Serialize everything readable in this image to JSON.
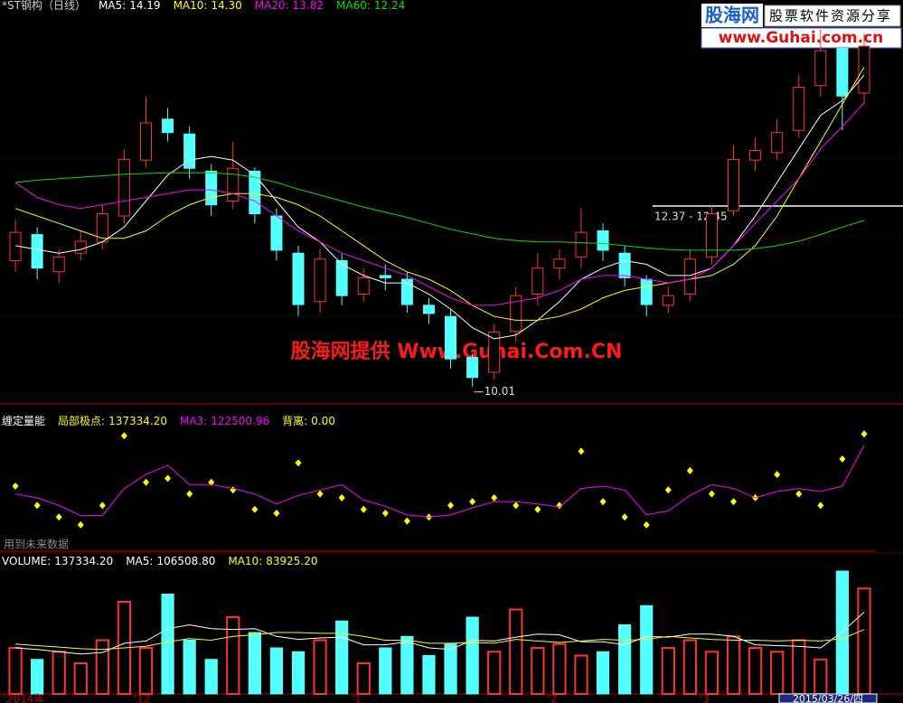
{
  "chart_data": [
    {
      "type": "candlestick",
      "title": "*ST钢构（日线）",
      "ylim": [
        9.8,
        15.2
      ],
      "up_color": "#ff3232",
      "down_color": "#54ffff",
      "open": [
        11.7,
        12.05,
        11.55,
        11.8,
        11.95,
        12.3,
        13.05,
        13.6,
        13.4,
        12.9,
        12.5,
        12.9,
        12.3,
        11.8,
        11.15,
        11.7,
        11.25,
        11.5,
        11.45,
        11.1,
        10.95,
        10.4,
        10.2,
        10.75,
        11.25,
        11.6,
        11.75,
        12.1,
        11.8,
        11.45,
        11.1,
        11.25,
        11.75,
        12.37,
        13.05,
        13.15,
        13.45,
        14.05,
        14.55,
        13.95
      ],
      "high": [
        12.25,
        12.15,
        11.85,
        12.1,
        12.45,
        13.2,
        13.9,
        13.75,
        13.5,
        13.0,
        13.3,
        12.95,
        12.4,
        11.9,
        11.85,
        11.8,
        11.6,
        11.65,
        11.55,
        11.2,
        11.05,
        10.45,
        10.85,
        11.35,
        11.8,
        11.85,
        12.4,
        12.2,
        11.9,
        11.5,
        11.35,
        11.85,
        12.45,
        13.25,
        13.35,
        13.6,
        14.2,
        14.8,
        14.6,
        14.75
      ],
      "low": [
        11.55,
        11.45,
        11.4,
        11.7,
        11.85,
        12.2,
        12.95,
        13.3,
        12.8,
        12.3,
        12.4,
        12.2,
        11.7,
        10.95,
        11.0,
        11.1,
        11.15,
        11.3,
        11.0,
        10.85,
        10.25,
        10.01,
        10.1,
        10.6,
        11.1,
        11.45,
        11.6,
        11.7,
        11.35,
        10.95,
        11.0,
        11.15,
        11.65,
        12.3,
        12.9,
        13.05,
        13.35,
        13.9,
        13.45,
        13.8
      ],
      "close": [
        12.08,
        11.6,
        11.75,
        11.96,
        12.33,
        13.06,
        13.55,
        13.42,
        12.94,
        12.45,
        12.94,
        12.33,
        11.84,
        11.11,
        11.72,
        11.23,
        11.47,
        11.47,
        11.11,
        10.99,
        10.38,
        10.13,
        10.74,
        11.23,
        11.6,
        11.72,
        12.08,
        11.84,
        11.47,
        11.11,
        11.23,
        11.72,
        12.33,
        13.06,
        13.18,
        13.42,
        14.03,
        14.52,
        13.91,
        14.58
      ],
      "series": [
        {
          "name": "MA5:",
          "color": "#ffffff",
          "current": {
            "value": 14.19,
            "label": "14.19"
          },
          "values": [
            11.9,
            11.85,
            11.8,
            11.85,
            11.95,
            12.15,
            12.5,
            12.85,
            13.05,
            13.1,
            13.05,
            12.85,
            12.5,
            12.15,
            11.95,
            11.65,
            11.5,
            11.4,
            11.4,
            11.25,
            11.05,
            10.8,
            10.65,
            10.7,
            10.9,
            11.15,
            11.45,
            11.6,
            11.7,
            11.65,
            11.5,
            11.5,
            11.6,
            11.9,
            12.3,
            12.75,
            13.2,
            13.65,
            13.85,
            14.19
          ]
        },
        {
          "name": "MA10:",
          "color": "#ffff00",
          "current": {
            "value": 14.3,
            "label": "14.30"
          },
          "values": [
            12.4,
            12.3,
            12.2,
            12.1,
            12.0,
            12.0,
            12.1,
            12.3,
            12.45,
            12.55,
            12.6,
            12.6,
            12.55,
            12.45,
            12.3,
            12.1,
            11.9,
            11.7,
            11.55,
            11.45,
            11.3,
            11.1,
            10.95,
            10.9,
            10.9,
            10.95,
            11.05,
            11.2,
            11.3,
            11.35,
            11.4,
            11.45,
            11.5,
            11.65,
            11.9,
            12.3,
            12.8,
            13.3,
            13.8,
            14.3
          ]
        },
        {
          "name": "MA20:",
          "color": "#ff00ff",
          "current": {
            "value": 13.82,
            "label": "13.82"
          },
          "values": [
            12.75,
            12.55,
            12.45,
            12.4,
            12.45,
            12.5,
            12.55,
            12.6,
            12.65,
            12.65,
            12.6,
            12.5,
            12.3,
            12.1,
            11.95,
            11.8,
            11.7,
            11.6,
            11.5,
            11.35,
            11.2,
            11.1,
            11.1,
            11.15,
            11.2,
            11.3,
            11.45,
            11.5,
            11.5,
            11.45,
            11.4,
            11.45,
            11.6,
            11.9,
            12.2,
            12.5,
            12.8,
            13.2,
            13.5,
            13.82
          ]
        },
        {
          "name": "MA60:",
          "color": "#00e000",
          "current": {
            "value": 12.24,
            "label": "12.24"
          },
          "values": [
            12.75,
            12.78,
            12.8,
            12.82,
            12.84,
            12.86,
            12.87,
            12.88,
            12.88,
            12.88,
            12.86,
            12.82,
            12.75,
            12.66,
            12.58,
            12.5,
            12.42,
            12.35,
            12.28,
            12.2,
            12.12,
            12.06,
            12.0,
            11.97,
            11.95,
            11.95,
            11.94,
            11.93,
            11.9,
            11.87,
            11.85,
            11.84,
            11.84,
            11.84,
            11.86,
            11.9,
            11.96,
            12.05,
            12.15,
            12.24
          ]
        }
      ],
      "annotation": "12.37 - 12.45"
    },
    {
      "type": "line",
      "title": "缠定量能",
      "ylim": [
        0,
        140000
      ],
      "series": [
        {
          "name": "局部极点:",
          "color": "#ffff00",
          "marker": "diamond",
          "current": {
            "value": 137334.2,
            "label": "137334.20"
          },
          "values": [
            70000,
            45000,
            30000,
            20000,
            45000,
            135000,
            75000,
            80000,
            60000,
            75000,
            65000,
            40000,
            35000,
            100000,
            60000,
            55000,
            40000,
            35000,
            25000,
            30000,
            45000,
            50000,
            55000,
            45000,
            40000,
            45000,
            115000,
            50000,
            30000,
            20000,
            65000,
            90000,
            60000,
            50000,
            55000,
            85000,
            60000,
            45000,
            105000,
            137334.2
          ]
        },
        {
          "name": "MA3:",
          "color": "#ff00ff",
          "current": {
            "value": 122500.96,
            "label": "122500.96"
          },
          "values": [
            60000,
            55000,
            45000,
            32000,
            32000,
            67000,
            85000,
            97000,
            72000,
            72000,
            67000,
            60000,
            47000,
            58000,
            65000,
            72000,
            52000,
            44000,
            33000,
            30000,
            33000,
            42000,
            50000,
            50000,
            47000,
            43000,
            67000,
            70000,
            65000,
            33000,
            38000,
            58000,
            72000,
            67000,
            55000,
            63000,
            67000,
            63000,
            70000,
            122500.96
          ]
        }
      ],
      "divergence": {
        "name": "背离:",
        "color": "#ffff00",
        "current": {
          "value": 0,
          "label": "0.00"
        }
      },
      "note": "用到未来数据"
    },
    {
      "type": "bar",
      "ylim": [
        0,
        180000
      ],
      "categories": [
        "2014年",
        null,
        null,
        null,
        null,
        null,
        "12",
        null,
        null,
        null,
        null,
        null,
        null,
        null,
        null,
        null,
        "1",
        null,
        null,
        null,
        null,
        null,
        null,
        null,
        null,
        "2",
        null,
        null,
        null,
        null,
        null,
        null,
        "3",
        null,
        null,
        null,
        null,
        null,
        null,
        null
      ],
      "cursor_date": "2015/03/26/四",
      "series": [
        {
          "name": "VOLUME:",
          "color": "#ffffff",
          "current": {
            "value": 137334.2,
            "label": "137334.20"
          },
          "values": [
            60000,
            45000,
            55000,
            40000,
            70000,
            120000,
            60000,
            130000,
            70000,
            45000,
            100000,
            80000,
            60000,
            55000,
            70000,
            95000,
            40000,
            60000,
            75000,
            50000,
            65000,
            100000,
            55000,
            110000,
            60000,
            65000,
            50000,
            55000,
            90000,
            115000,
            60000,
            70000,
            55000,
            75000,
            60000,
            55000,
            70000,
            45000,
            160000,
            137334.2
          ]
        },
        {
          "name": "MA5:",
          "color": "#ffffff",
          "current": {
            "value": 106508.8,
            "label": "106508.80"
          },
          "values": [
            60000,
            58000,
            55000,
            52000,
            54000,
            66000,
            69000,
            85000,
            90000,
            85000,
            84000,
            85000,
            75000,
            71000,
            73000,
            74000,
            64000,
            64000,
            68000,
            60000,
            58000,
            70000,
            69000,
            74000,
            78000,
            77000,
            68000,
            68000,
            64000,
            75000,
            74000,
            78000,
            78000,
            75000,
            64000,
            63000,
            62000,
            60000,
            81000,
            106508.8
          ]
        },
        {
          "name": "MA10:",
          "color": "#ffff00",
          "current": {
            "value": 83925.2,
            "label": "83925.20"
          },
          "values": [
            65000,
            63000,
            61000,
            59000,
            58000,
            60000,
            62000,
            68000,
            72000,
            70000,
            75000,
            77000,
            80000,
            80000,
            79000,
            79000,
            75000,
            70000,
            70000,
            66000,
            66000,
            67000,
            66000,
            71000,
            69000,
            67000,
            69000,
            71000,
            70000,
            71000,
            75000,
            73000,
            71000,
            70000,
            70000,
            69000,
            70000,
            69000,
            72000,
            83925.2
          ]
        }
      ]
    }
  ],
  "watermark": "股海网提供 Www.Guhai.Com.CN",
  "logo": {
    "name": "股海网",
    "slogan": "股票软件资源分享",
    "url": "www.Guhai.com.cn"
  }
}
